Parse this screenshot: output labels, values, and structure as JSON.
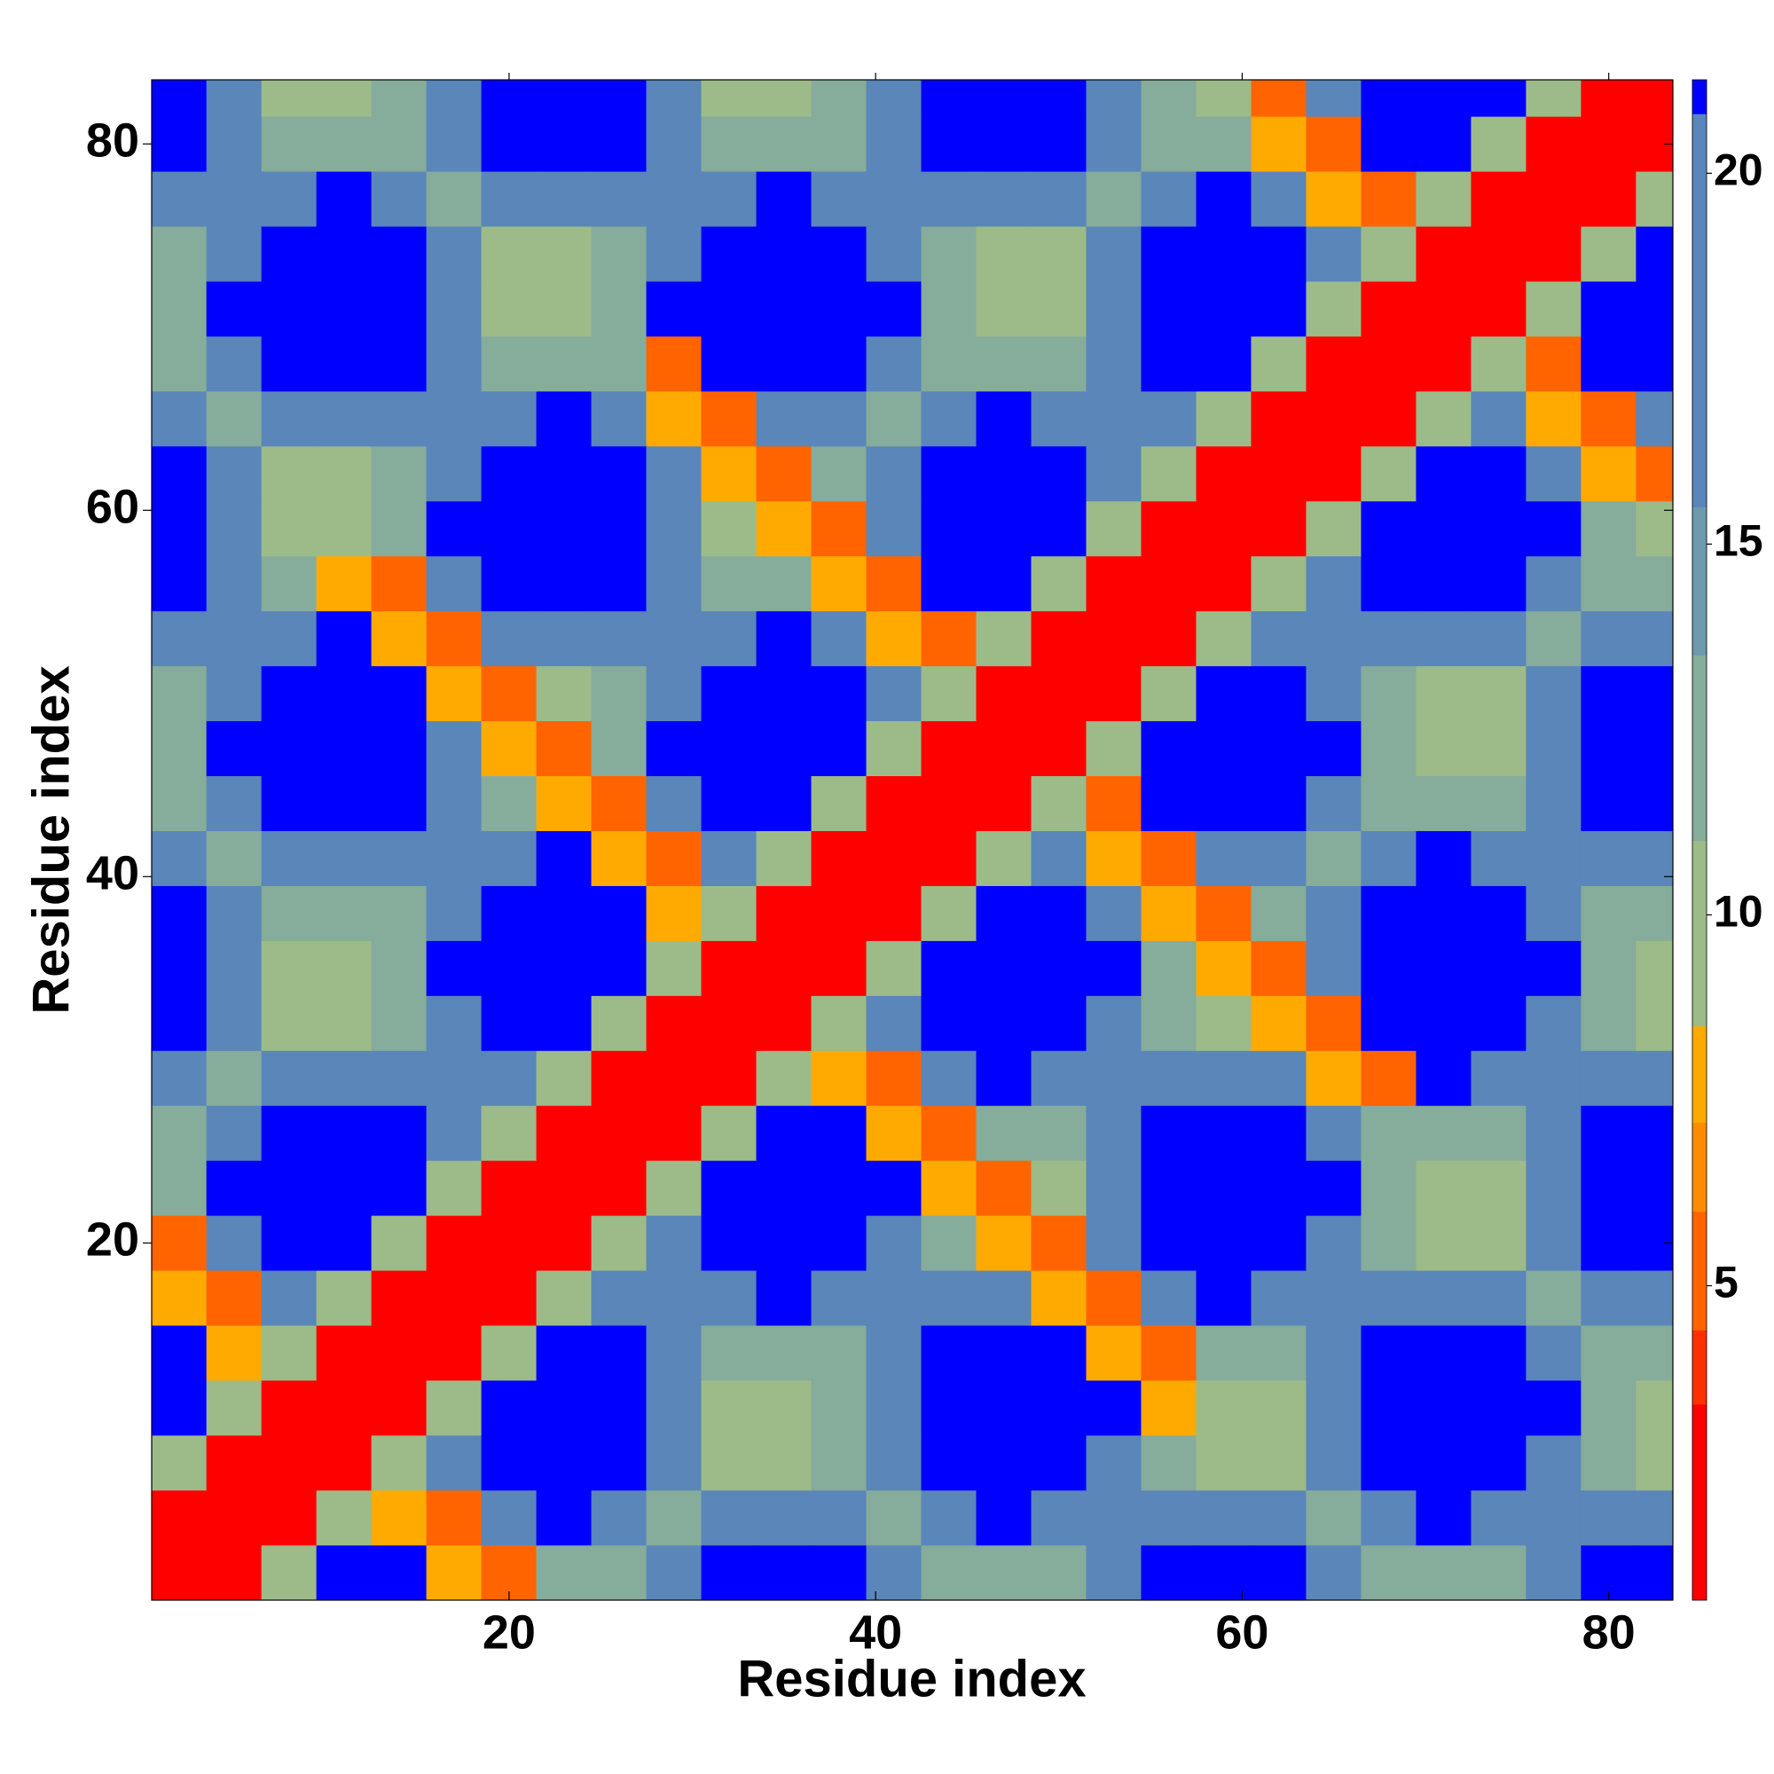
{
  "chart_data": {
    "type": "heatmap",
    "xlabel": "Residue index",
    "ylabel": "Residue index",
    "x": [
      0.5,
      3.5,
      6.5,
      9.5,
      12.5,
      15.5,
      18.5,
      21.5,
      24.5,
      27.5,
      30.5,
      33.5,
      36.5,
      39.5,
      42.5,
      45.5,
      48.5,
      51.5,
      54.5,
      57.5,
      60.5,
      63.5,
      66.5,
      69.5,
      72.5,
      75.5,
      78.5,
      81.5,
      83.5
    ],
    "y": [
      0.5,
      3.5,
      6.5,
      9.5,
      12.5,
      15.5,
      18.5,
      21.5,
      24.5,
      27.5,
      30.5,
      33.5,
      36.5,
      39.5,
      42.5,
      45.5,
      48.5,
      51.5,
      54.5,
      57.5,
      60.5,
      63.5,
      66.5,
      69.5,
      72.5,
      75.5,
      78.5,
      81.5,
      83.5
    ],
    "z": [
      [
        2,
        3,
        9,
        21,
        21,
        7.5,
        5,
        13,
        13,
        16,
        21,
        21,
        21,
        16,
        13,
        13,
        13,
        16,
        21,
        21,
        21,
        16,
        13,
        13,
        13,
        16,
        21,
        21
      ],
      [
        3,
        2,
        3,
        9,
        7.5,
        5,
        18,
        21,
        16,
        13,
        16,
        16,
        16,
        13,
        16,
        21,
        18,
        16,
        16,
        16,
        16,
        13,
        16,
        21,
        18,
        16,
        16,
        16
      ],
      [
        9,
        3,
        2,
        3,
        9,
        18,
        21,
        21,
        21,
        16,
        10,
        10,
        13,
        16,
        21,
        21,
        21,
        18,
        13,
        10,
        10,
        16,
        21,
        21,
        21,
        18,
        13,
        10
      ],
      [
        21,
        9,
        3,
        2,
        3,
        9,
        21,
        21,
        21,
        16,
        10,
        10,
        13,
        16,
        21,
        21,
        21,
        21,
        7.5,
        10,
        10,
        16,
        21,
        21,
        21,
        21,
        13,
        10
      ],
      [
        21,
        7.5,
        9,
        3,
        2,
        3,
        9,
        21,
        21,
        16,
        13,
        13,
        13,
        16,
        21,
        21,
        21,
        7.5,
        5,
        13,
        13,
        16,
        21,
        21,
        21,
        16,
        13,
        13
      ],
      [
        7.5,
        5,
        18,
        9,
        3,
        2,
        3,
        9,
        16,
        16,
        18,
        21,
        16,
        16,
        16,
        16,
        7.5,
        5,
        16,
        21,
        18,
        16,
        16,
        16,
        16,
        13,
        16,
        18
      ],
      [
        5,
        18,
        21,
        21,
        9,
        3,
        2,
        3,
        9,
        18,
        21,
        21,
        21,
        18,
        13,
        7.5,
        5,
        16,
        21,
        21,
        21,
        18,
        13,
        10,
        10,
        16,
        21,
        21
      ],
      [
        13,
        21,
        21,
        21,
        21,
        9,
        3,
        2,
        3,
        9,
        21,
        21,
        21,
        21,
        7.5,
        5,
        10,
        16,
        21,
        21,
        21,
        21,
        13,
        10,
        10,
        16,
        21,
        21
      ],
      [
        13,
        16,
        21,
        21,
        21,
        16,
        9,
        3,
        2,
        3,
        9,
        21,
        21,
        7.5,
        5,
        13,
        13,
        16,
        21,
        21,
        21,
        16,
        13,
        13,
        13,
        16,
        21,
        21
      ],
      [
        16,
        13,
        16,
        16,
        16,
        16,
        18,
        9,
        3,
        2,
        3,
        9,
        7.5,
        5,
        16,
        21,
        18,
        16,
        16,
        16,
        16,
        7.5,
        5,
        21,
        18,
        16,
        16,
        16
      ],
      [
        21,
        16,
        10,
        10,
        13,
        18,
        21,
        21,
        9,
        3,
        2,
        3,
        9,
        16,
        21,
        21,
        21,
        18,
        13,
        10,
        7.5,
        5,
        21,
        21,
        21,
        18,
        13,
        10
      ],
      [
        21,
        16,
        10,
        10,
        13,
        21,
        21,
        21,
        21,
        9,
        3,
        2,
        3,
        9,
        21,
        21,
        21,
        21,
        13,
        7.5,
        5,
        16,
        21,
        21,
        21,
        21,
        13,
        10
      ],
      [
        21,
        16,
        13,
        13,
        13,
        16,
        21,
        21,
        21,
        7.5,
        9,
        3,
        2,
        3,
        9,
        21,
        21,
        16,
        7.5,
        5,
        13,
        16,
        21,
        21,
        21,
        16,
        13,
        13
      ],
      [
        16,
        13,
        16,
        16,
        16,
        16,
        18,
        21,
        7.5,
        5,
        16,
        9,
        3,
        2,
        3,
        9,
        18,
        7.5,
        5,
        16,
        16,
        13,
        16,
        21,
        18,
        16,
        16,
        16
      ],
      [
        13,
        16,
        21,
        21,
        21,
        16,
        13,
        7.5,
        5,
        16,
        21,
        21,
        9,
        3,
        2,
        3,
        9,
        5,
        21,
        21,
        21,
        16,
        13,
        13,
        13,
        16,
        21,
        21
      ],
      [
        13,
        21,
        21,
        21,
        21,
        16,
        7.5,
        5,
        13,
        21,
        21,
        21,
        21,
        9,
        3,
        2,
        3,
        9,
        21,
        21,
        21,
        21,
        13,
        10,
        10,
        16,
        21,
        21
      ],
      [
        13,
        18,
        21,
        21,
        21,
        7.5,
        5,
        10,
        13,
        18,
        21,
        21,
        21,
        18,
        9,
        3,
        2,
        3,
        9,
        21,
        21,
        18,
        13,
        10,
        10,
        16,
        21,
        21
      ],
      [
        16,
        16,
        18,
        21,
        7.5,
        5,
        16,
        16,
        16,
        16,
        18,
        21,
        16,
        7.5,
        5,
        9,
        3,
        2,
        3,
        9,
        18,
        16,
        16,
        16,
        16,
        13,
        16,
        18
      ],
      [
        21,
        16,
        13,
        7.5,
        5,
        16,
        21,
        21,
        21,
        16,
        13,
        13,
        7.5,
        5,
        21,
        21,
        9,
        3,
        2,
        3,
        9,
        16,
        21,
        21,
        21,
        16,
        13,
        13
      ],
      [
        21,
        16,
        10,
        10,
        13,
        21,
        21,
        21,
        21,
        16,
        10,
        7.5,
        5,
        16,
        21,
        21,
        21,
        9,
        3,
        2,
        3,
        9,
        21,
        21,
        21,
        21,
        13,
        10
      ],
      [
        21,
        16,
        10,
        10,
        13,
        18,
        21,
        21,
        21,
        16,
        7.5,
        5,
        13,
        16,
        21,
        21,
        21,
        18,
        9,
        3,
        2,
        3,
        9,
        21,
        21,
        18,
        7.5,
        5
      ],
      [
        16,
        13,
        16,
        16,
        16,
        16,
        18,
        21,
        16,
        7.5,
        5,
        16,
        16,
        13,
        16,
        21,
        18,
        16,
        16,
        9,
        3,
        2,
        3,
        9,
        18,
        7.5,
        5,
        16
      ],
      [
        13,
        16,
        21,
        21,
        21,
        16,
        13,
        13,
        13,
        5,
        21,
        21,
        21,
        16,
        13,
        13,
        13,
        16,
        21,
        21,
        9,
        3,
        2,
        3,
        9,
        5,
        21,
        21
      ],
      [
        13,
        21,
        21,
        21,
        21,
        16,
        10,
        10,
        13,
        21,
        21,
        21,
        21,
        21,
        13,
        10,
        10,
        16,
        21,
        21,
        21,
        9,
        3,
        2,
        3,
        9,
        21,
        21
      ],
      [
        13,
        18,
        21,
        21,
        21,
        16,
        10,
        10,
        13,
        18,
        21,
        21,
        21,
        18,
        13,
        10,
        10,
        16,
        21,
        21,
        21,
        18,
        9,
        3,
        2,
        3,
        9,
        21
      ],
      [
        16,
        16,
        18,
        21,
        16,
        13,
        16,
        16,
        16,
        16,
        18,
        21,
        16,
        16,
        16,
        16,
        16,
        13,
        16,
        21,
        18,
        7.5,
        5,
        9,
        3,
        2,
        3,
        9
      ],
      [
        21,
        16,
        13,
        13,
        13,
        16,
        21,
        21,
        21,
        16,
        13,
        13,
        13,
        16,
        21,
        21,
        21,
        16,
        13,
        13,
        7.5,
        5,
        21,
        21,
        9,
        3,
        2,
        3
      ],
      [
        21,
        16,
        10,
        10,
        13,
        18,
        21,
        21,
        21,
        16,
        10,
        10,
        13,
        16,
        21,
        21,
        21,
        18,
        13,
        10,
        5,
        16,
        21,
        21,
        21,
        9,
        3,
        2
      ]
    ],
    "xlim": [
      0.5,
      83.5
    ],
    "ylim": [
      0.5,
      83.5
    ],
    "xticks": [
      20,
      40,
      60,
      80
    ],
    "yticks": [
      20,
      40,
      60,
      80
    ],
    "zlim": [
      0.76,
      21.26
    ],
    "zticks": [
      5,
      10,
      15,
      20
    ],
    "colorscale": [
      [
        0.76,
        3.4,
        "#ff0000"
      ],
      [
        3.4,
        4.4,
        "#ff3000"
      ],
      [
        4.4,
        6,
        "#ff6400"
      ],
      [
        6,
        7.2,
        "#ff8c00"
      ],
      [
        7.2,
        8.5,
        "#ffaa00"
      ],
      [
        8.5,
        11,
        "#9dbb88"
      ],
      [
        11,
        13.5,
        "#86ac9b"
      ],
      [
        13.5,
        15.5,
        "#6e99ae"
      ],
      [
        15.5,
        20.8,
        "#5a86ba"
      ],
      [
        20.8,
        21.26,
        "#0000ff"
      ]
    ]
  }
}
